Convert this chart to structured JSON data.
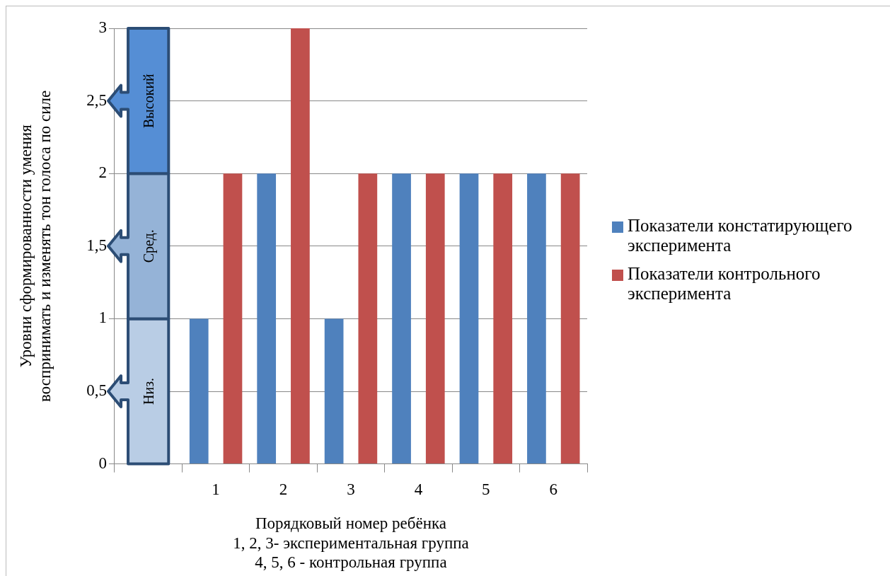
{
  "chart_data": {
    "type": "bar",
    "xlabel": "Порядковый номер ребёнка\n1, 2, 3- экспериментальная группа\n4, 5, 6 - контрольная группа",
    "ylabel": "Уровни сформированности умения\nвоспринимать и изменять тон голоса по силе",
    "categories": [
      null,
      "1",
      "2",
      "3",
      "4",
      "5",
      "6"
    ],
    "series": [
      {
        "name": "Показатели констатирующего эксперимента",
        "color": "#4f81bd",
        "values": [
          null,
          1,
          2,
          1,
          2,
          2,
          2
        ]
      },
      {
        "name": "Показатели контрольного эксперимента",
        "color": "#c0504d",
        "values": [
          null,
          2,
          3,
          2,
          2,
          2,
          2
        ]
      }
    ],
    "ylim": [
      0,
      3
    ],
    "yticks": [
      0,
      {
        "value": 0.5,
        "label": "0,5"
      },
      1,
      {
        "value": 1.5,
        "label": "1,5"
      },
      2,
      {
        "value": 2.5,
        "label": "2,5"
      },
      3
    ],
    "grid": "y",
    "legend": "right",
    "annotations": [
      "Низ.",
      "Сред.",
      "Высокий"
    ]
  }
}
